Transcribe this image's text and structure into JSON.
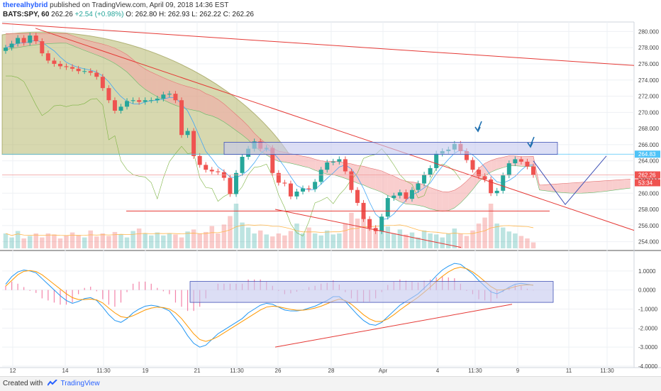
{
  "header": {
    "author": "therealhybrid",
    "published_text": "published on TradingView.com, April 09, 2018 14:36 EST",
    "symbol": "BATS:SPY, 60",
    "last": "262.26",
    "change": "+2.54 (+0.98%)",
    "open": "O: 262.80",
    "high": "H: 262.93",
    "low": "L: 262.22",
    "close": "C: 262.26"
  },
  "footer": {
    "created_with": "Created with",
    "brand": "TradingView"
  },
  "colors": {
    "up": "#26a69a",
    "down": "#ef5350",
    "cloud_red": "#f4a6a6",
    "cloud_green": "#b9dfb9",
    "arc_fill": "#a6a84e",
    "box_fill": "#c5c8ee",
    "macd": "#2196f3",
    "signal": "#ff9800",
    "trend": "#e53935",
    "projection": "#3f51b5",
    "arrow": "#1e6fb0"
  },
  "chart_data": {
    "type": "line",
    "symbol": "SPY",
    "timeframe": "60",
    "x_tick_labels": [
      "12",
      "14",
      "11:30",
      "19",
      "21",
      "11:30",
      "26",
      "28",
      "Apr",
      "4",
      "11:30",
      "9",
      "11",
      "11:30"
    ],
    "price_axis": {
      "ylim": [
        253,
        281
      ],
      "ticks": [
        254,
        256,
        258,
        260,
        262,
        264,
        266,
        268,
        270,
        272,
        274,
        276,
        278,
        280
      ]
    },
    "macd_axis": {
      "ylim": [
        -4,
        2
      ],
      "ticks": [
        1,
        0,
        -1,
        -2,
        -3,
        -4
      ],
      "tick_labels": [
        "1.0000",
        "0.0000",
        "-1.0000",
        "-2.0000",
        "-3.0000",
        "-4.0000"
      ]
    },
    "price_close_path": [
      278,
      278.5,
      279.2,
      278.6,
      279.5,
      278.8,
      277.3,
      276.4,
      276,
      275.7,
      275.6,
      275.4,
      275.1,
      275.1,
      274.9,
      274.4,
      273,
      271.5,
      270.2,
      270.7,
      271.4,
      271.5,
      271.3,
      271.5,
      271.5,
      271.7,
      272.2,
      272.3,
      271.5,
      267.2,
      267.7,
      264.6,
      263.5,
      262.9,
      262.7,
      262.6,
      261.9,
      259.9,
      262.5,
      264.5,
      265.5,
      266.4,
      265.5,
      265.6,
      262.5,
      261.3,
      261.2,
      259.6,
      260.2,
      260.6,
      260.5,
      261.4,
      262.9,
      263.8,
      263.9,
      264.2,
      262.7,
      260.4,
      258.8,
      256.8,
      255.7,
      255.3,
      257.1,
      259.4,
      259.7,
      260.1,
      259.3,
      260.4,
      261.2,
      262.3,
      263.1,
      264.9,
      265.2,
      265.4,
      266.1,
      265.2,
      264.1,
      262.9,
      262.1,
      261.7,
      260,
      260.3,
      262.2,
      263.7,
      264.2,
      263.9,
      263.3,
      262.26
    ],
    "series": [
      {
        "name": "Volume",
        "values": [
          0.3,
          0.22,
          0.35,
          0.2,
          0.25,
          0.3,
          0.22,
          0.3,
          0.28,
          0.2,
          0.26,
          0.32,
          0.27,
          0.22,
          0.36,
          0.24,
          0.3,
          0.25,
          0.33,
          0.28,
          0.22,
          0.35,
          0.4,
          0.3,
          0.26,
          0.32,
          0.26,
          0.3,
          0.28,
          0.22,
          0.34,
          0.38,
          0.3,
          0.33,
          0.45,
          0.3,
          0.48,
          0.65,
          0.9,
          0.52,
          0.42,
          0.3,
          0.36,
          0.28,
          0.24,
          0.3,
          0.26,
          0.35,
          0.5,
          0.3,
          0.42,
          0.3,
          0.26,
          0.36,
          0.28,
          0.3,
          0.5,
          0.72,
          0.6,
          0.64,
          0.42,
          0.34,
          0.38,
          0.44,
          0.3,
          0.38,
          0.28,
          0.32,
          0.22,
          0.36,
          0.3,
          0.28,
          0.22,
          0.3,
          0.4,
          0.3,
          0.25,
          0.36,
          0.5,
          0.62,
          0.9,
          0.5,
          0.42,
          0.34,
          0.3,
          0.25,
          0.2,
          0.12
        ]
      },
      {
        "name": "MACD",
        "values": [
          0.3,
          0.7,
          0.95,
          1.05,
          1,
          0.9,
          0.6,
          0.3,
          0,
          -0.3,
          -0.55,
          -0.7,
          -0.6,
          -0.45,
          -0.4,
          -0.55,
          -0.9,
          -1.3,
          -1.6,
          -1.7,
          -1.5,
          -1.2,
          -1,
          -0.85,
          -0.8,
          -0.85,
          -0.95,
          -1.1,
          -1.5,
          -1.9,
          -2.4,
          -2.8,
          -3,
          -2.9,
          -2.6,
          -2.3,
          -2.1,
          -1.9,
          -1.7,
          -1.5,
          -1.2,
          -1,
          -0.8,
          -0.7,
          -0.75,
          -0.9,
          -1.05,
          -1.1,
          -1.1,
          -1.05,
          -0.95,
          -0.85,
          -0.7,
          -0.55,
          -0.35,
          -0.35,
          -0.6,
          -0.95,
          -1.3,
          -1.6,
          -1.8,
          -1.85,
          -1.7,
          -1.4,
          -1.1,
          -0.8,
          -0.6,
          -0.4,
          -0.2,
          0.1,
          0.4,
          0.75,
          1.05,
          1.25,
          1.4,
          1.35,
          1.1,
          0.85,
          0.5,
          0.2,
          -0.1,
          -0.2,
          -0.05,
          0.15,
          0.3,
          0.35,
          0.3,
          0.25
        ]
      },
      {
        "name": "Signal",
        "values": [
          0.2,
          0.5,
          0.8,
          0.98,
          1.02,
          0.97,
          0.8,
          0.55,
          0.3,
          0.05,
          -0.2,
          -0.4,
          -0.5,
          -0.5,
          -0.48,
          -0.52,
          -0.68,
          -0.95,
          -1.2,
          -1.4,
          -1.45,
          -1.35,
          -1.2,
          -1.05,
          -0.95,
          -0.9,
          -0.92,
          -1,
          -1.2,
          -1.5,
          -1.9,
          -2.3,
          -2.6,
          -2.7,
          -2.6,
          -2.45,
          -2.25,
          -2.05,
          -1.85,
          -1.65,
          -1.45,
          -1.25,
          -1.05,
          -0.9,
          -0.85,
          -0.88,
          -0.95,
          -1.02,
          -1.06,
          -1.06,
          -1.02,
          -0.95,
          -0.85,
          -0.72,
          -0.58,
          -0.48,
          -0.55,
          -0.75,
          -1.02,
          -1.3,
          -1.52,
          -1.65,
          -1.65,
          -1.52,
          -1.3,
          -1.05,
          -0.82,
          -0.6,
          -0.38,
          -0.12,
          0.15,
          0.45,
          0.72,
          0.95,
          1.12,
          1.2,
          1.12,
          0.95,
          0.72,
          0.45,
          0.18,
          0,
          0,
          0.08,
          0.18,
          0.25,
          0.27,
          0.26
        ]
      },
      {
        "name": "Histogram",
        "values": [
          0.1,
          0.2,
          0.15,
          0.07,
          -0.02,
          -0.07,
          -0.2,
          -0.25,
          -0.3,
          -0.35,
          -0.35,
          -0.3,
          -0.1,
          0.05,
          0.08,
          -0.03,
          -0.22,
          -0.35,
          -0.4,
          -0.3,
          -0.05,
          0.15,
          0.2,
          0.2,
          0.15,
          0.05,
          -0.03,
          -0.1,
          -0.3,
          -0.4,
          -0.5,
          -0.5,
          -0.4,
          -0.2,
          0,
          0.15,
          0.15,
          0.15,
          0.15,
          0.15,
          0.25,
          0.25,
          0.25,
          0.2,
          0.1,
          -0.02,
          -0.1,
          -0.08,
          -0.04,
          0.01,
          0.07,
          0.1,
          0.15,
          0.17,
          0.23,
          0.13,
          -0.05,
          -0.2,
          -0.28,
          -0.3,
          -0.28,
          -0.2,
          -0.05,
          0.12,
          0.2,
          0.25,
          0.22,
          0.2,
          0.18,
          0.22,
          0.25,
          0.3,
          0.33,
          0.3,
          0.28,
          0.15,
          -0.02,
          -0.1,
          -0.22,
          -0.25,
          -0.28,
          -0.2,
          -0.05,
          0.07,
          0.12,
          0.1,
          0.03,
          -0.01
        ]
      }
    ],
    "annotations": {
      "resistance_zone": [
        264.8,
        266.3
      ],
      "support_line": 257.8,
      "current_price_line": 264.83,
      "price_labels": [
        "264.83",
        "262.26",
        "53:34"
      ]
    }
  }
}
